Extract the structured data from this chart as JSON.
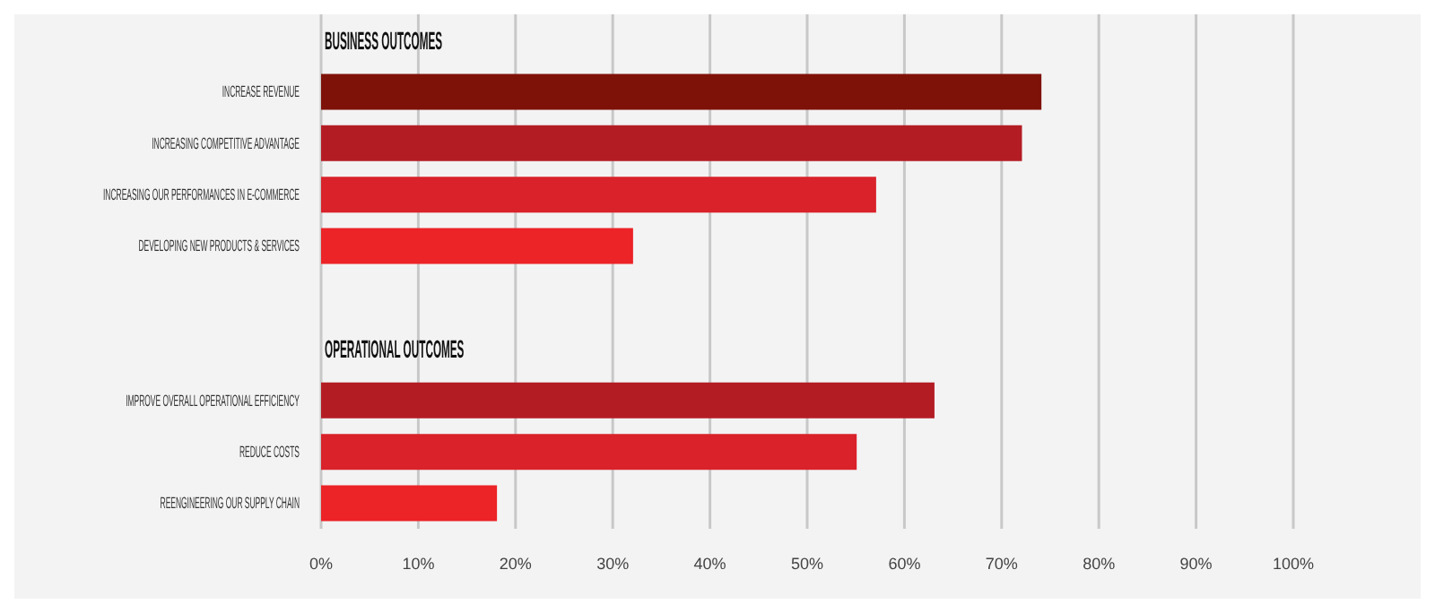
{
  "chart_data": {
    "type": "bar",
    "orientation": "horizontal",
    "categories": [
      "BUSINESS OUTCOMES",
      "INCREASE REVENUE",
      "INCREASING COMPETITIVE ADVANTAGE",
      "INCREASING OUR PERFORMANCES IN E-COMMERCE",
      "DEVELOPING NEW PRODUCTS & SERVICES",
      null,
      "OPERATIONAL OUTCOMES",
      "IMPROVE OVERALL OPERATIONAL EFFICIENCY",
      "REDUCE COSTS",
      "REENGINEERING OUR SUPPLY CHAIN"
    ],
    "values": [
      null,
      74,
      72,
      57,
      32,
      null,
      null,
      63,
      55,
      18
    ],
    "colors": [
      "#f3f3f3",
      "#7e1209",
      "#b41c24",
      "#d9222a",
      "#ec2327",
      "#f3f3f3",
      "#f3f3f3",
      "#b41c24",
      "#d9222a",
      "#ec2327"
    ],
    "xlim": [
      0,
      100
    ],
    "xticks": [
      {
        "value": 0,
        "label": "0%"
      },
      {
        "value": 10,
        "label": "10%"
      },
      {
        "value": 20,
        "label": "20%"
      },
      {
        "value": 30,
        "label": "30%"
      },
      {
        "value": 40,
        "label": "40%"
      },
      {
        "value": 50,
        "label": "50%"
      },
      {
        "value": 60,
        "label": "60%"
      },
      {
        "value": 70,
        "label": "70%"
      },
      {
        "value": 80,
        "label": "80%"
      },
      {
        "value": 90,
        "label": "90%"
      },
      {
        "value": 100,
        "label": "100%"
      }
    ],
    "grid": "x"
  }
}
